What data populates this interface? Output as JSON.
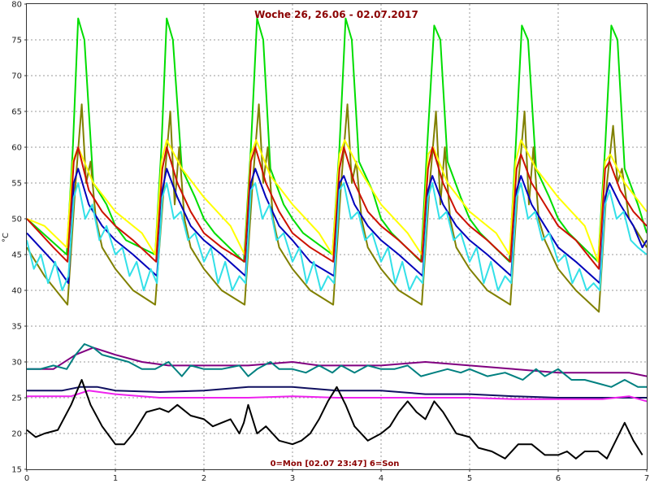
{
  "chart_data": {
    "type": "line",
    "title": "Woche 26, 26.06 - 02.07.2017",
    "subtitle": "0=Mon [02.07 23:47] 6=Son",
    "ylabel": "°C",
    "xlim": [
      0,
      7
    ],
    "ylim": [
      15,
      80
    ],
    "x_ticks": [
      0,
      1,
      2,
      3,
      4,
      5,
      6,
      7
    ],
    "y_ticks": [
      15,
      20,
      25,
      30,
      35,
      40,
      45,
      50,
      55,
      60,
      65,
      70,
      75,
      80
    ],
    "grid": true,
    "series": [
      {
        "color": "#00dd00",
        "x": [
          0,
          0.45,
          0.52,
          0.58,
          0.65,
          0.75,
          0.9,
          1.0,
          1.12,
          1.45,
          1.52,
          1.58,
          1.65,
          1.75,
          1.9,
          2.0,
          2.12,
          2.45,
          2.53,
          2.6,
          2.67,
          2.75,
          2.9,
          3.0,
          3.12,
          3.45,
          3.53,
          3.6,
          3.67,
          3.75,
          3.9,
          4.0,
          4.12,
          4.45,
          4.52,
          4.6,
          4.67,
          4.75,
          4.9,
          5.0,
          5.12,
          5.45,
          5.52,
          5.59,
          5.66,
          5.75,
          5.9,
          6.0,
          6.12,
          6.45,
          6.53,
          6.6,
          6.67,
          6.75,
          6.9,
          7.0
        ],
        "y": [
          50,
          45,
          60,
          78,
          75,
          55,
          52,
          49,
          47,
          45,
          60,
          78,
          75,
          57,
          53,
          50,
          48,
          44,
          60,
          78,
          75,
          57,
          52,
          50,
          48,
          45,
          60,
          78,
          75,
          58,
          54,
          50,
          48,
          44,
          60,
          77,
          75,
          58,
          53,
          50,
          48,
          44,
          60,
          77,
          75,
          57,
          53,
          50,
          48,
          44,
          60,
          77,
          75,
          57,
          52,
          48
        ]
      },
      {
        "color": "#808000",
        "x": [
          0,
          0.2,
          0.46,
          0.55,
          0.62,
          0.67,
          0.72,
          0.78,
          0.85,
          1.0,
          1.2,
          1.45,
          1.55,
          1.62,
          1.67,
          1.72,
          1.78,
          1.85,
          2.0,
          2.2,
          2.46,
          2.55,
          2.62,
          2.67,
          2.72,
          2.78,
          2.85,
          3.0,
          3.2,
          3.46,
          3.55,
          3.62,
          3.67,
          3.72,
          3.78,
          3.85,
          4.0,
          4.2,
          4.46,
          4.55,
          4.62,
          4.67,
          4.72,
          4.78,
          4.85,
          5.0,
          5.2,
          5.46,
          5.55,
          5.62,
          5.67,
          5.72,
          5.78,
          5.85,
          6.0,
          6.2,
          6.46,
          6.55,
          6.62,
          6.67,
          6.72,
          6.8,
          6.9,
          7.0
        ],
        "y": [
          46,
          42,
          38,
          55,
          66,
          55,
          58,
          50,
          46,
          43,
          40,
          38,
          55,
          65,
          52,
          60,
          50,
          46,
          43,
          40,
          38,
          55,
          66,
          55,
          60,
          50,
          46,
          43,
          40,
          38,
          55,
          66,
          55,
          58,
          50,
          46,
          43,
          40,
          38,
          55,
          65,
          52,
          60,
          50,
          46,
          43,
          40,
          38,
          55,
          65,
          52,
          60,
          50,
          47,
          43,
          40,
          37,
          55,
          63,
          55,
          57,
          50,
          48,
          46
        ]
      },
      {
        "color": "#ffff00",
        "x": [
          0,
          0.2,
          0.45,
          0.52,
          0.58,
          0.75,
          1.0,
          1.3,
          1.45,
          1.52,
          1.58,
          1.75,
          2.0,
          2.3,
          2.46,
          2.53,
          2.59,
          2.75,
          3.0,
          3.3,
          3.45,
          3.53,
          3.59,
          3.75,
          4.0,
          4.3,
          4.46,
          4.53,
          4.59,
          4.75,
          5.0,
          5.3,
          5.45,
          5.52,
          5.58,
          5.75,
          6.0,
          6.3,
          6.45,
          6.53,
          6.59,
          6.75,
          7.0
        ],
        "y": [
          50,
          49,
          46,
          58,
          60,
          55,
          51,
          48,
          45,
          58,
          61,
          57,
          53,
          49,
          45,
          59,
          61,
          56,
          52,
          48,
          45,
          59,
          61,
          57,
          52,
          48,
          45,
          59,
          60,
          55,
          51,
          48,
          45,
          58,
          61,
          57,
          53,
          49,
          44,
          58,
          59,
          55,
          51
        ]
      },
      {
        "color": "#cc1100",
        "x": [
          0,
          0.15,
          0.3,
          0.46,
          0.53,
          0.58,
          0.7,
          0.85,
          1.0,
          1.2,
          1.46,
          1.53,
          1.58,
          1.7,
          1.85,
          2.0,
          2.2,
          2.46,
          2.53,
          2.58,
          2.7,
          2.85,
          3.0,
          3.2,
          3.46,
          3.53,
          3.58,
          3.7,
          3.85,
          4.0,
          4.2,
          4.46,
          4.53,
          4.58,
          4.7,
          4.85,
          5.0,
          5.2,
          5.46,
          5.53,
          5.58,
          5.7,
          5.85,
          6.0,
          6.2,
          6.46,
          6.53,
          6.58,
          6.7,
          6.85,
          7.0
        ],
        "y": [
          50,
          48,
          46,
          44,
          58,
          60,
          54,
          51,
          49,
          47,
          44,
          57,
          60,
          55,
          51,
          48,
          46,
          44,
          58,
          60,
          55,
          51,
          48,
          46,
          44,
          57,
          60,
          55,
          51,
          49,
          47,
          44,
          57,
          60,
          55,
          51,
          49,
          47,
          44,
          57,
          59,
          55,
          52,
          49,
          47,
          43,
          57,
          58,
          54,
          51,
          49
        ]
      },
      {
        "color": "#0000bb",
        "x": [
          0,
          0.15,
          0.3,
          0.47,
          0.53,
          0.58,
          0.7,
          0.85,
          1.0,
          1.2,
          1.47,
          1.53,
          1.58,
          1.7,
          1.85,
          2.0,
          2.2,
          2.47,
          2.53,
          2.58,
          2.7,
          2.85,
          3.0,
          3.2,
          3.47,
          3.53,
          3.58,
          3.7,
          3.85,
          4.0,
          4.2,
          4.47,
          4.53,
          4.58,
          4.7,
          4.85,
          5.0,
          5.2,
          5.47,
          5.53,
          5.58,
          5.7,
          5.85,
          6.0,
          6.2,
          6.47,
          6.53,
          6.58,
          6.7,
          6.85,
          6.95,
          7.0
        ],
        "y": [
          48,
          46,
          44,
          41,
          55,
          57,
          52,
          49,
          47,
          45,
          42,
          54,
          57,
          53,
          49,
          47,
          45,
          42,
          55,
          57,
          53,
          49,
          47,
          44,
          42,
          55,
          56,
          52,
          49,
          47,
          45,
          42,
          54,
          56,
          52,
          49,
          47,
          45,
          42,
          54,
          56,
          52,
          49,
          46,
          44,
          41,
          53,
          55,
          52,
          49,
          46,
          47
        ]
      },
      {
        "color": "#33e0e8",
        "x": [
          0,
          0.08,
          0.16,
          0.24,
          0.32,
          0.4,
          0.47,
          0.53,
          0.58,
          0.66,
          0.74,
          0.82,
          0.9,
          1.0,
          1.08,
          1.16,
          1.24,
          1.32,
          1.4,
          1.47,
          1.53,
          1.58,
          1.66,
          1.74,
          1.82,
          1.9,
          2.0,
          2.08,
          2.16,
          2.24,
          2.32,
          2.4,
          2.47,
          2.53,
          2.58,
          2.66,
          2.74,
          2.82,
          2.9,
          3.0,
          3.08,
          3.16,
          3.24,
          3.32,
          3.4,
          3.47,
          3.53,
          3.58,
          3.66,
          3.74,
          3.82,
          3.9,
          4.0,
          4.08,
          4.16,
          4.24,
          4.32,
          4.4,
          4.47,
          4.53,
          4.58,
          4.66,
          4.74,
          4.82,
          4.9,
          5.0,
          5.08,
          5.16,
          5.24,
          5.32,
          5.4,
          5.47,
          5.53,
          5.58,
          5.66,
          5.74,
          5.82,
          5.9,
          6.0,
          6.08,
          6.16,
          6.24,
          6.32,
          6.4,
          6.47,
          6.53,
          6.58,
          6.66,
          6.74,
          6.82,
          6.9,
          7.0
        ],
        "y": [
          47,
          43,
          45,
          41,
          44,
          40,
          42,
          53,
          55,
          50,
          52,
          47,
          49,
          45,
          46,
          42,
          44,
          40,
          43,
          41,
          53,
          55,
          50,
          51,
          47,
          48,
          44,
          46,
          41,
          44,
          40,
          42,
          41,
          54,
          55,
          50,
          52,
          47,
          48,
          44,
          46,
          41,
          44,
          40,
          42,
          41,
          54,
          55,
          50,
          51,
          47,
          48,
          44,
          46,
          41,
          44,
          40,
          42,
          41,
          53,
          55,
          50,
          51,
          47,
          48,
          44,
          46,
          41,
          44,
          40,
          42,
          41,
          53,
          55,
          50,
          51,
          47,
          48,
          44,
          45,
          41,
          43,
          40,
          41,
          40,
          52,
          54,
          50,
          51,
          47,
          46,
          45
        ]
      },
      {
        "color": "#800080",
        "x": [
          0,
          0.3,
          0.55,
          0.75,
          1.0,
          1.3,
          1.6,
          2.0,
          2.5,
          3.0,
          3.3,
          3.6,
          4.0,
          4.5,
          5.0,
          5.5,
          6.0,
          6.5,
          6.8,
          7.0
        ],
        "y": [
          29,
          29,
          31,
          32,
          31,
          30,
          29.5,
          29.5,
          29.5,
          30,
          29.5,
          29.5,
          29.5,
          30,
          29.5,
          29,
          28.5,
          28.5,
          28.5,
          28
        ]
      },
      {
        "color": "#008080",
        "x": [
          0,
          0.15,
          0.3,
          0.45,
          0.55,
          0.65,
          0.75,
          0.85,
          1.0,
          1.15,
          1.3,
          1.45,
          1.6,
          1.75,
          1.85,
          2.0,
          2.2,
          2.4,
          2.5,
          2.6,
          2.75,
          2.85,
          3.0,
          3.15,
          3.3,
          3.45,
          3.55,
          3.7,
          3.85,
          4.0,
          4.15,
          4.3,
          4.45,
          4.6,
          4.75,
          4.9,
          5.0,
          5.2,
          5.4,
          5.6,
          5.75,
          5.85,
          6.0,
          6.15,
          6.3,
          6.45,
          6.6,
          6.75,
          6.9,
          7.0
        ],
        "y": [
          29,
          29,
          29.5,
          29,
          31,
          32.5,
          32,
          31,
          30.5,
          30,
          29,
          29,
          30,
          28,
          29.5,
          29,
          29,
          29.5,
          28,
          29,
          30,
          29,
          29,
          28.5,
          29.5,
          28.5,
          29.5,
          28.5,
          29.5,
          29,
          29,
          29.5,
          28,
          28.5,
          29,
          28.5,
          29,
          28,
          28.5,
          27.5,
          29,
          28,
          29,
          27.5,
          27.5,
          27,
          26.5,
          27.5,
          26.5,
          26.5
        ]
      },
      {
        "color": "#101060",
        "x": [
          0,
          0.4,
          0.6,
          0.8,
          1.0,
          1.5,
          2.0,
          2.5,
          3.0,
          3.5,
          4.0,
          4.5,
          5.0,
          5.5,
          6.0,
          6.5,
          7.0
        ],
        "y": [
          26,
          26,
          26.5,
          26.5,
          26,
          25.8,
          26,
          26.5,
          26.5,
          26,
          26,
          25.5,
          25.5,
          25.2,
          25,
          25,
          25
        ]
      },
      {
        "color": "#ee22ee",
        "x": [
          0,
          0.5,
          0.7,
          1.0,
          1.5,
          2.0,
          2.5,
          3.0,
          3.5,
          4.0,
          4.5,
          5.0,
          5.5,
          6.0,
          6.5,
          6.8,
          7.0
        ],
        "y": [
          25.2,
          25.2,
          26,
          25.5,
          25,
          25,
          25,
          25.2,
          25,
          25,
          25,
          25,
          24.8,
          24.8,
          24.8,
          25.2,
          24.5
        ]
      },
      {
        "color": "#000000",
        "x": [
          0,
          0.1,
          0.2,
          0.35,
          0.5,
          0.62,
          0.72,
          0.85,
          1.0,
          1.1,
          1.2,
          1.35,
          1.5,
          1.6,
          1.7,
          1.85,
          2.0,
          2.1,
          2.2,
          2.3,
          2.4,
          2.45,
          2.5,
          2.6,
          2.7,
          2.85,
          3.0,
          3.1,
          3.2,
          3.3,
          3.4,
          3.5,
          3.6,
          3.7,
          3.85,
          4.0,
          4.1,
          4.2,
          4.3,
          4.4,
          4.5,
          4.6,
          4.7,
          4.85,
          5.0,
          5.1,
          5.25,
          5.4,
          5.55,
          5.7,
          5.85,
          6.0,
          6.1,
          6.2,
          6.3,
          6.45,
          6.55,
          6.65,
          6.75,
          6.85,
          6.95
        ],
        "y": [
          20.5,
          19.5,
          20,
          20.5,
          24,
          27.5,
          24,
          21,
          18.5,
          18.5,
          20,
          23,
          23.5,
          23,
          24,
          22.5,
          22,
          21,
          21.5,
          22,
          20,
          21.5,
          24,
          20,
          21,
          19,
          18.5,
          19,
          20,
          22,
          24.5,
          26.5,
          24,
          21,
          19,
          20,
          21,
          23,
          24.5,
          23,
          22,
          24.5,
          23,
          20,
          19.5,
          18,
          17.5,
          16.5,
          18.5,
          18.5,
          17,
          17,
          17.5,
          16.5,
          17.5,
          17.5,
          16.5,
          19,
          21.5,
          19,
          17
        ]
      }
    ]
  }
}
